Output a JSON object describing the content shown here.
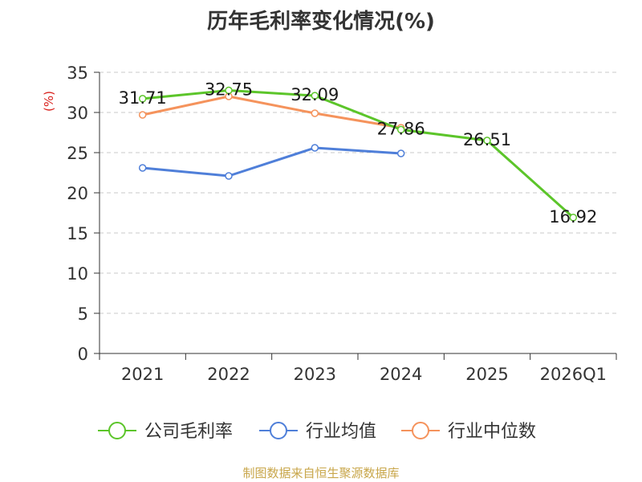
{
  "chart_data": {
    "type": "line",
    "title": "历年毛利率变化情况(%)",
    "ylabel": "(%)",
    "xlabel": "",
    "categories": [
      "2021",
      "2022",
      "2023",
      "2024",
      "2025",
      "2026Q1"
    ],
    "ylim": [
      0,
      35
    ],
    "yticks": [
      0,
      5,
      10,
      15,
      20,
      25,
      30,
      35
    ],
    "grid": true,
    "legend_position": "bottom",
    "series": [
      {
        "name": "公司毛利率",
        "color": "#5cc52a",
        "values": [
          31.71,
          32.75,
          32.09,
          27.86,
          26.51,
          16.92
        ],
        "labels": [
          "31.71",
          "32.75",
          "32.09",
          "27.86",
          "26.51",
          "16.92"
        ]
      },
      {
        "name": "行业均值",
        "color": "#4f7fd9",
        "values": [
          23.1,
          22.1,
          25.6,
          24.9,
          null,
          null
        ]
      },
      {
        "name": "行业中位数",
        "color": "#f5935c",
        "values": [
          29.7,
          32.0,
          29.9,
          28.1,
          null,
          null
        ]
      }
    ]
  },
  "footer": {
    "source": "制图数据来自恒生聚源数据库"
  }
}
